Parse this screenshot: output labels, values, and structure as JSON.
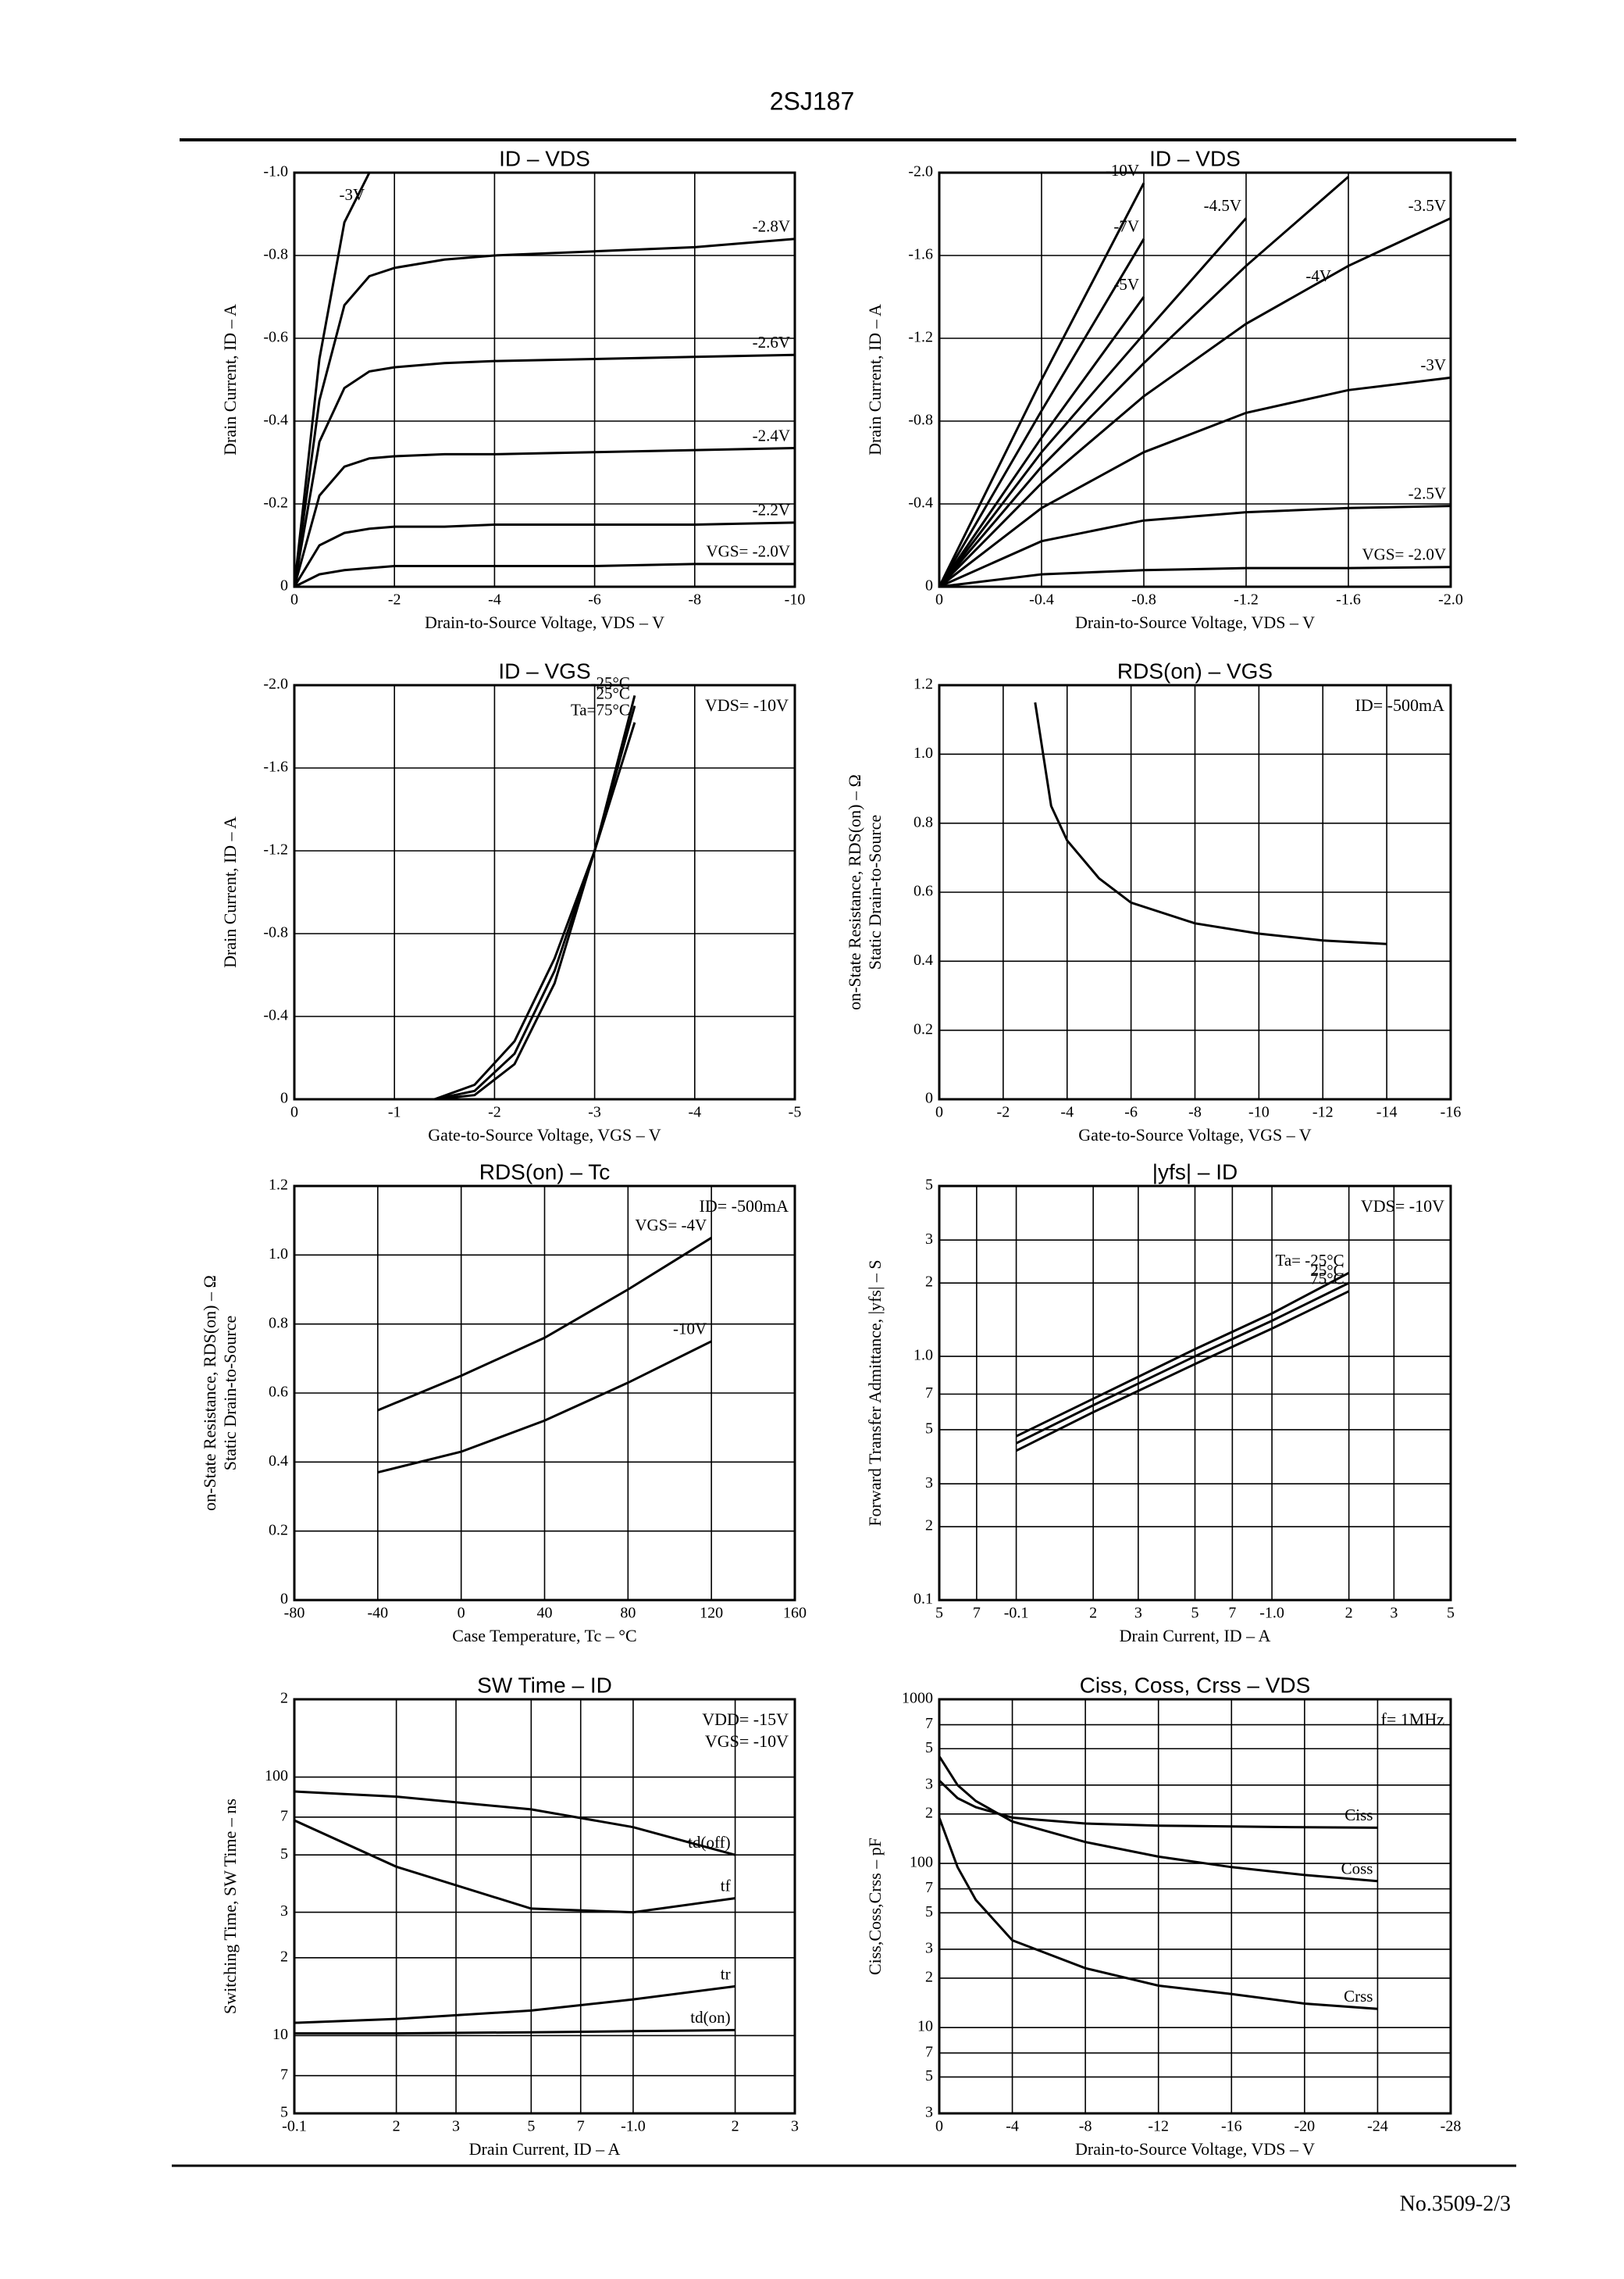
{
  "header": "2SJ187",
  "footer": "No.3509-2/3",
  "chart_data": [
    {
      "type": "line",
      "title": "ID – VDS",
      "xlabel": "Drain-to-Source Voltage, VDS – V",
      "ylabel": "Drain Current, ID – A",
      "color": "#000000",
      "grid": true,
      "xlim": [
        0,
        -10
      ],
      "xticks": [
        0,
        -2,
        -4,
        -6,
        -8,
        -10
      ],
      "ylim": [
        0,
        -1.0
      ],
      "yticks": [
        {
          "value": -1.0,
          "label": "-1.0"
        },
        -0.8,
        -0.6,
        -0.4,
        -0.2,
        0
      ],
      "x": [
        0,
        -0.5,
        -1,
        -1.5,
        -2,
        -3,
        -4,
        -6,
        -8,
        -10
      ],
      "series": [
        {
          "name": "-3V",
          "values": [
            0,
            -0.55,
            -0.88,
            -1.0,
            null,
            null,
            null,
            null,
            null,
            null
          ]
        },
        {
          "name": "-2.8V",
          "values": [
            0,
            -0.45,
            -0.68,
            -0.75,
            -0.77,
            -0.79,
            -0.8,
            -0.81,
            -0.82,
            -0.84
          ]
        },
        {
          "name": "-2.6V",
          "values": [
            0,
            -0.35,
            -0.48,
            -0.52,
            -0.53,
            -0.54,
            -0.545,
            -0.55,
            -0.555,
            -0.56
          ]
        },
        {
          "name": "-2.4V",
          "values": [
            0,
            -0.22,
            -0.29,
            -0.31,
            -0.315,
            -0.32,
            -0.32,
            -0.325,
            -0.33,
            -0.335
          ]
        },
        {
          "name": "-2.2V",
          "values": [
            0,
            -0.1,
            -0.13,
            -0.14,
            -0.145,
            -0.145,
            -0.15,
            -0.15,
            -0.15,
            -0.155
          ]
        },
        {
          "name": "VGS= -2.0V",
          "values": [
            0,
            -0.03,
            -0.04,
            -0.045,
            -0.05,
            -0.05,
            -0.05,
            -0.05,
            -0.055,
            -0.055
          ]
        }
      ]
    },
    {
      "type": "line",
      "title": "ID – VDS",
      "xlabel": "Drain-to-Source Voltage, VDS – V",
      "ylabel": "Drain Current, ID – A",
      "color": "#000000",
      "grid": true,
      "xlim": [
        0,
        -2.0
      ],
      "xticks": [
        0,
        -0.4,
        -0.8,
        -1.2,
        -1.6,
        {
          "value": -2.0,
          "label": "-2.0"
        }
      ],
      "ylim": [
        0,
        -2.0
      ],
      "yticks": [
        {
          "value": -2.0,
          "label": "-2.0"
        },
        -1.6,
        -1.2,
        -0.8,
        -0.4,
        0
      ],
      "x": [
        0,
        -0.4,
        -0.8,
        -1.2,
        -1.6,
        -2.0
      ],
      "series": [
        {
          "name": "-10V",
          "values": [
            0,
            -1.0,
            -1.95,
            null,
            null,
            null
          ]
        },
        {
          "name": "-7V",
          "values": [
            0,
            -0.85,
            -1.68,
            null,
            null,
            null
          ]
        },
        {
          "name": "-5V",
          "values": [
            0,
            -0.72,
            -1.4,
            null,
            null,
            null
          ]
        },
        {
          "name": "-4.5V",
          "values": [
            0,
            -0.65,
            -1.22,
            -1.78,
            null,
            null
          ]
        },
        {
          "name": "-4V",
          "values": [
            0,
            -0.58,
            -1.08,
            -1.55,
            -1.98,
            null
          ]
        },
        {
          "name": "-3.5V",
          "values": [
            0,
            -0.5,
            -0.92,
            -1.27,
            -1.55,
            -1.78
          ]
        },
        {
          "name": "-3V",
          "values": [
            0,
            -0.38,
            -0.65,
            -0.84,
            -0.95,
            -1.01
          ]
        },
        {
          "name": "-2.5V",
          "values": [
            0,
            -0.22,
            -0.32,
            -0.36,
            -0.38,
            -0.39
          ]
        },
        {
          "name": "VGS= -2.0V",
          "values": [
            0,
            -0.06,
            -0.08,
            -0.09,
            -0.09,
            -0.095
          ]
        }
      ]
    },
    {
      "type": "line",
      "title": "ID – VGS",
      "xlabel": "Gate-to-Source Voltage, VGS – V",
      "ylabel": "Drain Current, ID – A",
      "color": "#000000",
      "grid": true,
      "annotations": [
        "VDS= -10V"
      ],
      "xlim": [
        0,
        -5
      ],
      "xticks": [
        0,
        -1,
        -2,
        -3,
        -4,
        -5
      ],
      "ylim": [
        0,
        -2.0
      ],
      "yticks": [
        {
          "value": -2.0,
          "label": "-2.0"
        },
        -1.6,
        -1.2,
        -0.8,
        -0.4,
        0
      ],
      "x": [
        -1.4,
        -1.8,
        -2.2,
        -2.6,
        -3.0,
        -3.4
      ],
      "series": [
        {
          "name": "Ta=75°C",
          "values": [
            0,
            -0.07,
            -0.28,
            -0.68,
            -1.2,
            -1.82
          ]
        },
        {
          "name": "25°C",
          "values": [
            0,
            -0.04,
            -0.22,
            -0.62,
            -1.2,
            -1.9
          ]
        },
        {
          "name": "-25°C",
          "values": [
            0,
            -0.02,
            -0.17,
            -0.56,
            -1.2,
            -1.95
          ]
        }
      ]
    },
    {
      "type": "line",
      "title": "RDS(on) – VGS",
      "xlabel": "Gate-to-Source Voltage, VGS – V",
      "ylabel": [
        "Static Drain-to-Source",
        "on-State Resistance, RDS(on) – Ω"
      ],
      "color": "#000000",
      "grid": true,
      "annotations": [
        "ID= -500mA"
      ],
      "xlim": [
        0,
        -16
      ],
      "xticks": [
        0,
        -2,
        -4,
        -6,
        -8,
        -10,
        -12,
        -14,
        -16
      ],
      "ylim": [
        0,
        1.2
      ],
      "yticks": [
        0,
        0.2,
        0.4,
        0.6,
        0.8,
        {
          "value": 1.0,
          "label": "1.0"
        },
        1.2
      ],
      "x": [
        -3,
        -3.5,
        -4,
        -5,
        -6,
        -8,
        -10,
        -12,
        -14
      ],
      "values": [
        1.15,
        0.85,
        0.75,
        0.64,
        0.57,
        0.51,
        0.48,
        0.46,
        0.45
      ]
    },
    {
      "type": "line",
      "title": "RDS(on) – Tc",
      "xlabel": "Case Temperature, Tc – °C",
      "ylabel": [
        "Static Drain-to-Source",
        "on-State Resistance, RDS(on) – Ω"
      ],
      "color": "#000000",
      "grid": true,
      "annotations": [
        "ID= -500mA"
      ],
      "xlim": [
        -80,
        160
      ],
      "xticks": [
        -80,
        -40,
        0,
        40,
        80,
        120,
        160
      ],
      "ylim": [
        0,
        1.2
      ],
      "yticks": [
        0,
        0.2,
        0.4,
        0.6,
        0.8,
        {
          "value": 1.0,
          "label": "1.0"
        },
        1.2
      ],
      "x": [
        -40,
        0,
        40,
        80,
        120
      ],
      "series": [
        {
          "name": "VGS= -4V",
          "values": [
            0.55,
            0.65,
            0.76,
            0.9,
            1.05
          ]
        },
        {
          "name": "-10V",
          "values": [
            0.37,
            0.43,
            0.52,
            0.63,
            0.75
          ]
        }
      ]
    },
    {
      "type": "line",
      "title": "|yfs| – ID",
      "xlabel": "Drain Current, ID – A",
      "ylabel": "Forward Transfer Admittance, |yfs| – S",
      "color": "#000000",
      "grid": true,
      "xlog": true,
      "ylog": true,
      "annotations": [
        "VDS= -10V"
      ],
      "xlim": [
        -0.05,
        -5
      ],
      "xticks": [
        {
          "value": -0.05,
          "label": "5"
        },
        {
          "value": -0.07,
          "label": "7"
        },
        -0.1,
        {
          "value": -0.2,
          "label": "2"
        },
        {
          "value": -0.3,
          "label": "3"
        },
        {
          "value": -0.5,
          "label": "5"
        },
        {
          "value": -0.7,
          "label": "7"
        },
        {
          "value": -1.0,
          "label": "-1.0"
        },
        {
          "value": -2,
          "label": "2"
        },
        {
          "value": -3,
          "label": "3"
        },
        {
          "value": -5,
          "label": "5"
        }
      ],
      "ylim": [
        0.1,
        5
      ],
      "yticks": [
        0.1,
        {
          "value": 0.2,
          "label": "2"
        },
        {
          "value": 0.3,
          "label": "3"
        },
        {
          "value": 0.5,
          "label": "5"
        },
        {
          "value": 0.7,
          "label": "7"
        },
        {
          "value": 1.0,
          "label": "1.0"
        },
        2,
        3,
        5
      ],
      "x": [
        -0.1,
        -0.2,
        -0.5,
        -1,
        -2
      ],
      "series": [
        {
          "name": "Ta= -25°C",
          "values": [
            0.47,
            0.67,
            1.07,
            1.5,
            2.2
          ]
        },
        {
          "name": "25°C",
          "values": [
            0.44,
            0.63,
            1.0,
            1.4,
            2.0
          ]
        },
        {
          "name": "75°C",
          "values": [
            0.41,
            0.59,
            0.93,
            1.3,
            1.85
          ]
        }
      ]
    },
    {
      "type": "line",
      "title": "SW Time – ID",
      "xlabel": "Drain Current, ID – A",
      "ylabel": "Switching Time, SW Time – ns",
      "color": "#000000",
      "grid": true,
      "xlog": true,
      "ylog": true,
      "annotations": [
        "VDD= -15V",
        "VGS= -10V"
      ],
      "xlim": [
        -0.1,
        -3
      ],
      "xticks": [
        -0.1,
        {
          "value": -0.2,
          "label": "2"
        },
        {
          "value": -0.3,
          "label": "3"
        },
        {
          "value": -0.5,
          "label": "5"
        },
        {
          "value": -0.7,
          "label": "7"
        },
        {
          "value": -1.0,
          "label": "-1.0"
        },
        {
          "value": -2,
          "label": "2"
        },
        {
          "value": -3,
          "label": "3"
        }
      ],
      "ylim": [
        5,
        200
      ],
      "yticks": [
        5,
        7,
        10,
        {
          "value": 20,
          "label": "2"
        },
        {
          "value": 30,
          "label": "3"
        },
        {
          "value": 50,
          "label": "5"
        },
        {
          "value": 70,
          "label": "7"
        },
        100,
        {
          "value": 200,
          "label": "2"
        }
      ],
      "x": [
        -0.1,
        -0.2,
        -0.5,
        -1,
        -2
      ],
      "series": [
        {
          "name": "td(off)",
          "values": [
            88,
            84,
            75,
            64,
            50
          ]
        },
        {
          "name": "tf",
          "values": [
            68,
            45,
            31,
            30,
            34
          ]
        },
        {
          "name": "tr",
          "values": [
            11.2,
            11.6,
            12.5,
            13.8,
            15.5
          ]
        },
        {
          "name": "td(on)",
          "values": [
            10.2,
            10.2,
            10.3,
            10.4,
            10.5
          ]
        }
      ]
    },
    {
      "type": "line",
      "title": "Ciss, Coss, Crss – VDS",
      "xlabel": "Drain-to-Source Voltage, VDS – V",
      "ylabel": "Ciss,Coss,Crss – pF",
      "color": "#000000",
      "grid": true,
      "ylog": true,
      "annotations": [
        "f= 1MHz"
      ],
      "xlim": [
        0,
        -28
      ],
      "xticks": [
        0,
        -4,
        -8,
        -12,
        -16,
        -20,
        -24,
        -28
      ],
      "ylim": [
        3,
        1000
      ],
      "yticks": [
        3,
        5,
        7,
        10,
        {
          "value": 20,
          "label": "2"
        },
        {
          "value": 30,
          "label": "3"
        },
        {
          "value": 50,
          "label": "5"
        },
        {
          "value": 70,
          "label": "7"
        },
        100,
        {
          "value": 200,
          "label": "2"
        },
        {
          "value": 300,
          "label": "3"
        },
        {
          "value": 500,
          "label": "5"
        },
        {
          "value": 700,
          "label": "7"
        },
        1000
      ],
      "x": [
        0,
        -1,
        -2,
        -4,
        -8,
        -12,
        -16,
        -20,
        -24
      ],
      "series": [
        {
          "name": "Ciss",
          "values": [
            320,
            250,
            220,
            190,
            175,
            170,
            168,
            166,
            165
          ]
        },
        {
          "name": "Coss",
          "values": [
            450,
            300,
            240,
            180,
            135,
            110,
            95,
            85,
            78
          ]
        },
        {
          "name": "Crss",
          "values": [
            190,
            95,
            60,
            34,
            23,
            18,
            16,
            14,
            13
          ]
        }
      ]
    }
  ]
}
